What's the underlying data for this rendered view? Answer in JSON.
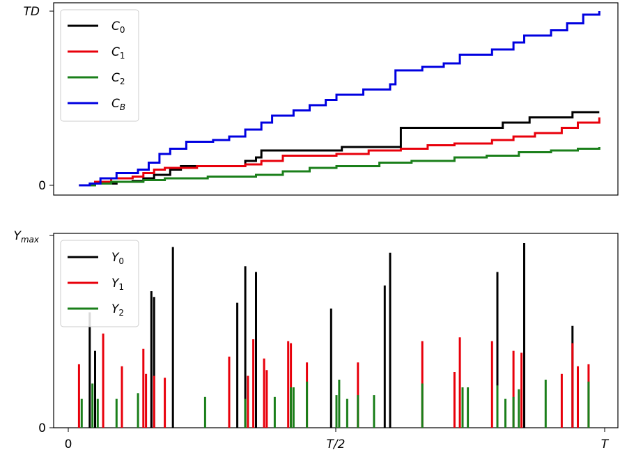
{
  "chart_data": [
    {
      "type": "line",
      "subtype": "step",
      "ylabel_tick_top": "TD",
      "ylabel_tick_zero": "0",
      "xlim": [
        0,
        1
      ],
      "ylim": [
        0,
        1
      ],
      "grid": false,
      "legend": {
        "placement": "top-left",
        "entries": [
          {
            "label": "C",
            "sub": "0",
            "color": "#000000"
          },
          {
            "label": "C",
            "sub": "1",
            "color": "#e8000b"
          },
          {
            "label": "C",
            "sub": "2",
            "color": "#1a7f1a"
          },
          {
            "label": "C",
            "sub": "B",
            "color": "#0000e0"
          }
        ]
      },
      "series": [
        {
          "name": "C0",
          "color": "#000000",
          "points": [
            [
              0.02,
              0
            ],
            [
              0.05,
              0.01
            ],
            [
              0.09,
              0.02
            ],
            [
              0.12,
              0.025
            ],
            [
              0.14,
              0.04
            ],
            [
              0.16,
              0.06
            ],
            [
              0.19,
              0.09
            ],
            [
              0.21,
              0.11
            ],
            [
              0.32,
              0.11
            ],
            [
              0.33,
              0.14
            ],
            [
              0.35,
              0.16
            ],
            [
              0.36,
              0.2
            ],
            [
              0.5,
              0.2
            ],
            [
              0.51,
              0.22
            ],
            [
              0.61,
              0.22
            ],
            [
              0.62,
              0.33
            ],
            [
              0.8,
              0.33
            ],
            [
              0.81,
              0.36
            ],
            [
              0.85,
              0.36
            ],
            [
              0.86,
              0.39
            ],
            [
              0.92,
              0.39
            ],
            [
              0.94,
              0.42
            ],
            [
              0.99,
              0.42
            ]
          ]
        },
        {
          "name": "C1",
          "color": "#e8000b",
          "points": [
            [
              0.02,
              0
            ],
            [
              0.05,
              0.02
            ],
            [
              0.08,
              0.04
            ],
            [
              0.12,
              0.05
            ],
            [
              0.14,
              0.07
            ],
            [
              0.16,
              0.09
            ],
            [
              0.18,
              0.1
            ],
            [
              0.24,
              0.11
            ],
            [
              0.3,
              0.11
            ],
            [
              0.33,
              0.12
            ],
            [
              0.36,
              0.14
            ],
            [
              0.4,
              0.17
            ],
            [
              0.5,
              0.18
            ],
            [
              0.56,
              0.2
            ],
            [
              0.62,
              0.21
            ],
            [
              0.67,
              0.23
            ],
            [
              0.72,
              0.24
            ],
            [
              0.79,
              0.26
            ],
            [
              0.83,
              0.28
            ],
            [
              0.87,
              0.3
            ],
            [
              0.92,
              0.33
            ],
            [
              0.95,
              0.36
            ],
            [
              0.99,
              0.39
            ]
          ]
        },
        {
          "name": "C2",
          "color": "#1a7f1a",
          "points": [
            [
              0.02,
              0
            ],
            [
              0.05,
              0.01
            ],
            [
              0.08,
              0.02
            ],
            [
              0.14,
              0.03
            ],
            [
              0.18,
              0.04
            ],
            [
              0.26,
              0.05
            ],
            [
              0.35,
              0.06
            ],
            [
              0.4,
              0.08
            ],
            [
              0.45,
              0.1
            ],
            [
              0.5,
              0.11
            ],
            [
              0.58,
              0.13
            ],
            [
              0.64,
              0.14
            ],
            [
              0.72,
              0.16
            ],
            [
              0.78,
              0.17
            ],
            [
              0.84,
              0.19
            ],
            [
              0.9,
              0.2
            ],
            [
              0.95,
              0.21
            ],
            [
              0.99,
              0.22
            ]
          ]
        },
        {
          "name": "CB",
          "color": "#0000e0",
          "points": [
            [
              0.02,
              0
            ],
            [
              0.04,
              0.01
            ],
            [
              0.06,
              0.04
            ],
            [
              0.09,
              0.07
            ],
            [
              0.13,
              0.09
            ],
            [
              0.15,
              0.13
            ],
            [
              0.17,
              0.18
            ],
            [
              0.19,
              0.21
            ],
            [
              0.22,
              0.25
            ],
            [
              0.27,
              0.26
            ],
            [
              0.3,
              0.28
            ],
            [
              0.33,
              0.32
            ],
            [
              0.36,
              0.36
            ],
            [
              0.38,
              0.4
            ],
            [
              0.42,
              0.43
            ],
            [
              0.45,
              0.46
            ],
            [
              0.48,
              0.49
            ],
            [
              0.5,
              0.52
            ],
            [
              0.55,
              0.55
            ],
            [
              0.6,
              0.58
            ],
            [
              0.61,
              0.66
            ],
            [
              0.66,
              0.68
            ],
            [
              0.7,
              0.7
            ],
            [
              0.73,
              0.75
            ],
            [
              0.79,
              0.78
            ],
            [
              0.83,
              0.82
            ],
            [
              0.85,
              0.86
            ],
            [
              0.9,
              0.89
            ],
            [
              0.93,
              0.93
            ],
            [
              0.96,
              0.98
            ],
            [
              0.99,
              1.0
            ]
          ]
        }
      ]
    },
    {
      "type": "bar",
      "ylabel_tick_top": "Ymax",
      "ylabel_tick_zero": "0",
      "xtick_labels": [
        "0",
        "T/2",
        "T"
      ],
      "xlim": [
        0,
        1
      ],
      "ylim": [
        0,
        1
      ],
      "grid": false,
      "legend": {
        "placement": "top-left",
        "entries": [
          {
            "label": "Y",
            "sub": "0",
            "color": "#000000"
          },
          {
            "label": "Y",
            "sub": "1",
            "color": "#e8000b"
          },
          {
            "label": "Y",
            "sub": "2",
            "color": "#1a7f1a"
          }
        ]
      },
      "series": [
        {
          "name": "Y0",
          "color": "#000000",
          "x": [
            0.04,
            0.05,
            0.155,
            0.16,
            0.195,
            0.315,
            0.33,
            0.35,
            0.49,
            0.59,
            0.6,
            0.8,
            0.85,
            0.94
          ],
          "values": [
            0.6,
            0.4,
            0.71,
            0.68,
            0.94,
            0.65,
            0.84,
            0.81,
            0.62,
            0.74,
            0.91,
            0.81,
            0.96,
            0.53
          ]
        },
        {
          "name": "Y1",
          "color": "#e8000b",
          "x": [
            0.02,
            0.065,
            0.1,
            0.14,
            0.145,
            0.16,
            0.18,
            0.3,
            0.335,
            0.345,
            0.365,
            0.37,
            0.41,
            0.415,
            0.445,
            0.54,
            0.66,
            0.72,
            0.73,
            0.79,
            0.83,
            0.845,
            0.92,
            0.94,
            0.95,
            0.97
          ],
          "values": [
            0.33,
            0.49,
            0.32,
            0.41,
            0.28,
            0.27,
            0.26,
            0.37,
            0.27,
            0.46,
            0.36,
            0.3,
            0.45,
            0.44,
            0.34,
            0.34,
            0.45,
            0.29,
            0.47,
            0.45,
            0.4,
            0.39,
            0.28,
            0.44,
            0.32,
            0.33
          ]
        },
        {
          "name": "Y2",
          "color": "#1a7f1a",
          "x": [
            0.025,
            0.045,
            0.055,
            0.09,
            0.13,
            0.255,
            0.33,
            0.385,
            0.415,
            0.42,
            0.445,
            0.5,
            0.505,
            0.52,
            0.54,
            0.57,
            0.66,
            0.735,
            0.745,
            0.8,
            0.815,
            0.83,
            0.84,
            0.89,
            0.97
          ],
          "values": [
            0.15,
            0.23,
            0.15,
            0.15,
            0.18,
            0.16,
            0.15,
            0.16,
            0.21,
            0.21,
            0.24,
            0.17,
            0.25,
            0.15,
            0.17,
            0.17,
            0.23,
            0.21,
            0.21,
            0.22,
            0.15,
            0.16,
            0.2,
            0.25,
            0.24
          ]
        }
      ]
    }
  ]
}
